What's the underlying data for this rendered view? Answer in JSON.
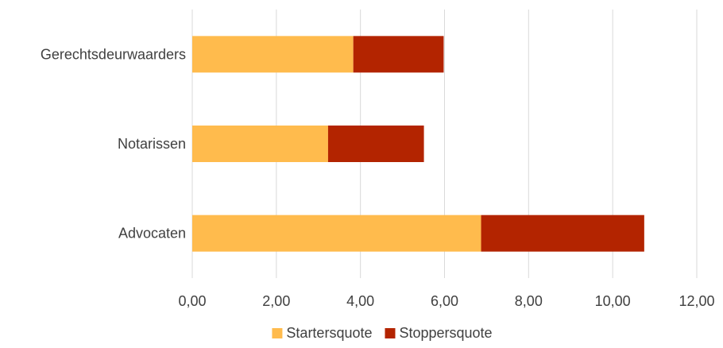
{
  "chart_data": {
    "type": "bar",
    "orientation": "horizontal",
    "stacked": true,
    "categories": [
      "Gerechtsdeurwaarders",
      "Notarissen",
      "Advocaten"
    ],
    "series": [
      {
        "name": "Startersquote",
        "color": "#ffbb4d",
        "values": [
          3.83,
          3.23,
          6.87
        ]
      },
      {
        "name": "Stoppersquote",
        "color": "#b32400",
        "values": [
          2.15,
          2.28,
          3.88
        ]
      }
    ],
    "xlim": [
      0,
      12
    ],
    "x_ticks": [
      0,
      2,
      4,
      6,
      8,
      10,
      12
    ],
    "x_tick_labels": [
      "0,00",
      "2,00",
      "4,00",
      "6,00",
      "8,00",
      "10,00",
      "12,00"
    ],
    "grid": true,
    "gridline_color": "#d9d9d9",
    "legend": "bottom",
    "title": "",
    "xlabel": "",
    "ylabel": ""
  }
}
